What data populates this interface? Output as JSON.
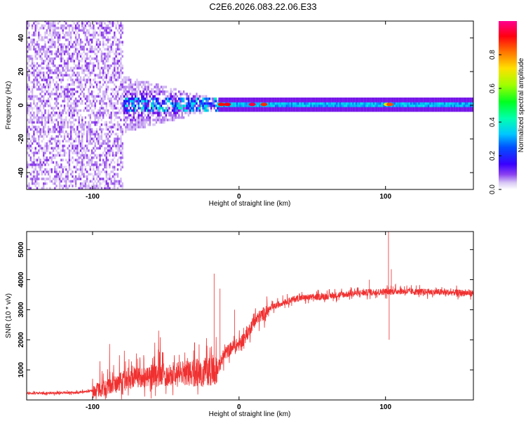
{
  "title": "C2E6.2026.083.22.06.E33",
  "chart_data": [
    {
      "type": "heatmap",
      "xlabel": "Height of straight line (km)",
      "ylabel": "Frequency (Hz)",
      "xlim": [
        -145,
        160
      ],
      "ylim": [
        -50,
        50
      ],
      "xticks": [
        -100,
        0,
        100
      ],
      "yticks": [
        -40,
        -20,
        0,
        20,
        40
      ],
      "colorbar": {
        "label": "Normalized spectral amplitude",
        "range": [
          0,
          1
        ],
        "ticks": [
          "0.0",
          "0.2",
          "0.4",
          "0.6",
          "0.8"
        ],
        "tick_values": [
          0,
          0.2,
          0.4,
          0.6,
          0.8
        ],
        "colors": [
          "#ffffff",
          "#c8a8f0",
          "#6a00e8",
          "#2000ff",
          "#00a0ff",
          "#00e8e8",
          "#00ff60",
          "#80ff00",
          "#ffe000",
          "#ff8000",
          "#ff0000",
          "#ff0090"
        ]
      },
      "features": {
        "noise_region": [
          -145,
          -80
        ],
        "transition_region": [
          -80,
          -15
        ],
        "signal_band_center_hz": 0,
        "signal_band_halfwidth_hz": 3
      }
    },
    {
      "type": "line",
      "xlabel": "Height of straight line (km)",
      "ylabel": "SNR (10 * v/v)",
      "xlim": [
        -145,
        160
      ],
      "ylim": [
        0,
        5600
      ],
      "xticks": [
        -100,
        0,
        100
      ],
      "yticks": [
        1000,
        2000,
        3000,
        4000,
        5000
      ],
      "color": "#f03030",
      "envelope": {
        "x": [
          -145,
          -130,
          -110,
          -100,
          -90,
          -80,
          -70,
          -60,
          -50,
          -40,
          -30,
          -20,
          -15,
          -10,
          -5,
          0,
          5,
          10,
          20,
          30,
          40,
          60,
          80,
          90,
          100,
          110,
          120,
          140,
          160
        ],
        "y": [
          220,
          230,
          250,
          300,
          420,
          650,
          750,
          800,
          830,
          860,
          900,
          950,
          1000,
          1500,
          1750,
          1850,
          2150,
          2600,
          3000,
          3250,
          3380,
          3450,
          3550,
          3580,
          3600,
          3620,
          3600,
          3580,
          3550
        ]
      },
      "spikes": [
        {
          "x": -17,
          "y": 4200
        },
        {
          "x": -13,
          "y": 3700
        },
        {
          "x": -3,
          "y": 3000
        },
        {
          "x": 89,
          "y": 4000
        },
        {
          "x": 102,
          "y": 5600
        },
        {
          "x": 102.5,
          "y": 2000
        },
        {
          "x": 104,
          "y": 4350
        }
      ]
    }
  ]
}
